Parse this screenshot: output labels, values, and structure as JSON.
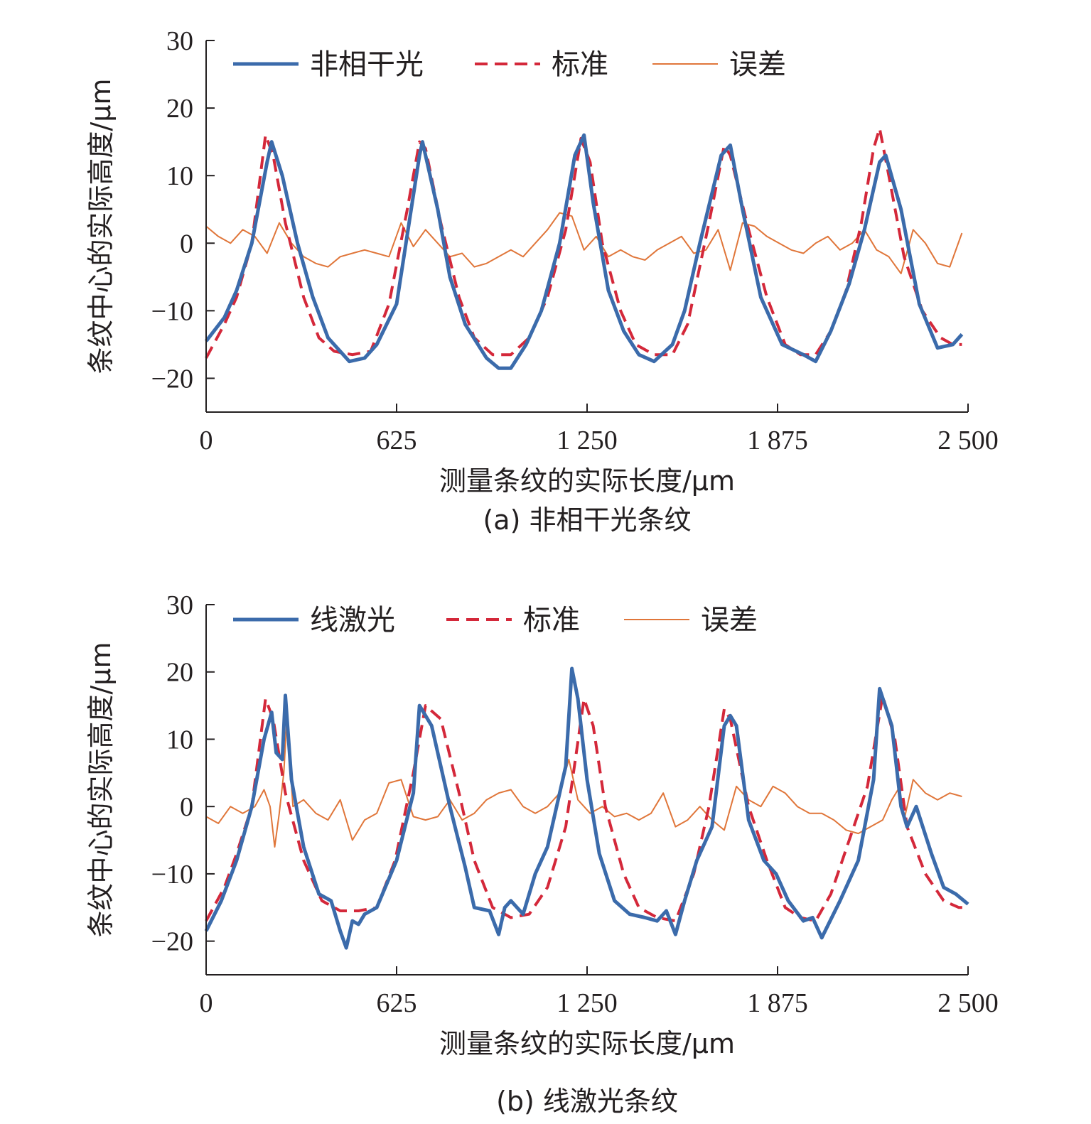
{
  "chart_data": [
    {
      "type": "line",
      "caption": "(a) 非相干光条纹",
      "xlabel": "测量条纹的实际长度/μm",
      "ylabel": "条纹中心的实际高度/μm",
      "xlim": [
        0,
        2500
      ],
      "ylim": [
        -25,
        30
      ],
      "xticks": [
        0,
        625,
        1250,
        1875,
        2500
      ],
      "xtick_labels": [
        "0",
        "625",
        "1 250",
        "1 875",
        "2 500"
      ],
      "yticks": [
        -20,
        -10,
        0,
        10,
        20,
        30
      ],
      "ytick_labels": [
        "−20",
        "−10",
        "0",
        "10",
        "20",
        "30"
      ],
      "grid": false,
      "legend_position": "top, horizontal",
      "series": [
        {
          "name": "非相干光",
          "color": "#3b6bab",
          "style": "solid-thick",
          "x": [
            0,
            60,
            100,
            150,
            200,
            215,
            250,
            300,
            350,
            400,
            470,
            520,
            560,
            625,
            700,
            710,
            760,
            800,
            850,
            920,
            960,
            1000,
            1050,
            1100,
            1160,
            1210,
            1240,
            1270,
            1320,
            1370,
            1420,
            1470,
            1530,
            1570,
            1620,
            1690,
            1720,
            1760,
            1820,
            1890,
            1960,
            2000,
            2050,
            2110,
            2160,
            2210,
            2230,
            2280,
            2340,
            2400,
            2450,
            2480
          ],
          "values": [
            -14.5,
            -11,
            -7,
            0,
            12,
            15,
            10,
            0,
            -8,
            -14,
            -17.5,
            -17,
            -15,
            -9,
            13,
            15,
            5,
            -5,
            -12,
            -17,
            -18.5,
            -18.5,
            -15,
            -10,
            0,
            13,
            16,
            6,
            -7,
            -13,
            -16.5,
            -17.5,
            -15,
            -10,
            0,
            13,
            14.5,
            5,
            -8,
            -15,
            -16.5,
            -17.5,
            -13,
            -6,
            2,
            12,
            13,
            5,
            -9,
            -15.5,
            -15,
            -13.5
          ]
        },
        {
          "name": "标准",
          "color": "#d4283a",
          "style": "dashed",
          "x": [
            0,
            60,
            100,
            150,
            195,
            220,
            260,
            320,
            370,
            420,
            480,
            540,
            600,
            660,
            700,
            720,
            770,
            830,
            880,
            940,
            1000,
            1060,
            1120,
            1180,
            1230,
            1260,
            1300,
            1360,
            1410,
            1470,
            1530,
            1580,
            1650,
            1700,
            1720,
            1780,
            1840,
            1900,
            1950,
            2000,
            2050,
            2100,
            2150,
            2190,
            2210,
            2240,
            2290,
            2350,
            2410,
            2450,
            2480
          ],
          "values": [
            -17,
            -12,
            -8,
            0,
            16,
            13,
            3,
            -8,
            -14,
            -16,
            -16.5,
            -16,
            -9,
            5,
            15,
            14,
            3,
            -8,
            -14,
            -16.5,
            -16.5,
            -14,
            -8,
            2,
            15.5,
            12,
            0,
            -10,
            -15,
            -16.5,
            -16.5,
            -12,
            3,
            14.5,
            13,
            2,
            -8,
            -15,
            -16.5,
            -16.5,
            -13,
            -7,
            3,
            14,
            17,
            10,
            -2,
            -10,
            -14,
            -15,
            -15
          ]
        },
        {
          "name": "误差",
          "color": "#e0763a",
          "style": "solid-thin",
          "x": [
            0,
            40,
            80,
            120,
            160,
            200,
            240,
            280,
            320,
            360,
            400,
            440,
            480,
            520,
            560,
            600,
            640,
            680,
            720,
            760,
            800,
            840,
            880,
            920,
            960,
            1000,
            1040,
            1080,
            1120,
            1160,
            1200,
            1240,
            1280,
            1320,
            1360,
            1400,
            1440,
            1480,
            1520,
            1560,
            1600,
            1640,
            1680,
            1720,
            1760,
            1800,
            1840,
            1880,
            1920,
            1960,
            2000,
            2040,
            2080,
            2120,
            2160,
            2200,
            2240,
            2280,
            2320,
            2360,
            2400,
            2440,
            2480
          ],
          "values": [
            2.5,
            1,
            0,
            2,
            1,
            -1.5,
            3,
            0,
            -2,
            -3,
            -3.5,
            -2,
            -1.5,
            -1,
            -1.5,
            -2,
            3,
            -0.5,
            2,
            0,
            -2,
            -1.5,
            -3.5,
            -3,
            -2,
            -1,
            -2,
            0,
            2,
            4.5,
            4,
            -1,
            1,
            -2,
            -1,
            -2,
            -2.5,
            -1,
            0,
            1,
            -1.5,
            -1,
            2,
            -4,
            3,
            2.5,
            1,
            0,
            -1,
            -1.5,
            0,
            1,
            -1,
            0,
            2,
            -1,
            -2,
            -4.5,
            2,
            0,
            -3,
            -3.5,
            1.5
          ]
        }
      ]
    },
    {
      "type": "line",
      "caption": "(b) 线激光条纹",
      "xlabel": "测量条纹的实际长度/μm",
      "ylabel": "条纹中心的实际高度/μm",
      "xlim": [
        0,
        2500
      ],
      "ylim": [
        -25,
        30
      ],
      "xticks": [
        0,
        625,
        1250,
        1875,
        2500
      ],
      "xtick_labels": [
        "0",
        "625",
        "1 250",
        "1 875",
        "2 500"
      ],
      "yticks": [
        -20,
        -10,
        0,
        10,
        20,
        30
      ],
      "ytick_labels": [
        "−20",
        "−10",
        "0",
        "10",
        "20",
        "30"
      ],
      "grid": false,
      "legend_position": "top, horizontal",
      "series": [
        {
          "name": "线激光",
          "color": "#3b6bab",
          "style": "solid-thick",
          "x": [
            0,
            50,
            100,
            150,
            190,
            215,
            230,
            250,
            260,
            280,
            320,
            370,
            410,
            440,
            460,
            480,
            500,
            520,
            560,
            625,
            680,
            700,
            740,
            800,
            850,
            880,
            930,
            960,
            980,
            1000,
            1040,
            1080,
            1120,
            1180,
            1200,
            1220,
            1250,
            1290,
            1340,
            1390,
            1440,
            1480,
            1510,
            1540,
            1570,
            1610,
            1660,
            1700,
            1720,
            1740,
            1780,
            1830,
            1870,
            1910,
            1960,
            1990,
            2020,
            2080,
            2140,
            2190,
            2210,
            2250,
            2280,
            2300,
            2330,
            2380,
            2420,
            2460,
            2500
          ],
          "values": [
            -18.5,
            -14,
            -8,
            0,
            10,
            14,
            8,
            7,
            16.5,
            4,
            -6,
            -13,
            -14,
            -18.5,
            -21,
            -17,
            -17.5,
            -16,
            -15,
            -8,
            2,
            15,
            12,
            0,
            -9,
            -15,
            -15.5,
            -19,
            -15,
            -14,
            -16,
            -10,
            -6,
            6,
            20.5,
            16,
            4,
            -7,
            -14,
            -16,
            -16.5,
            -17,
            -15.5,
            -19,
            -14,
            -8,
            -3,
            12,
            13.5,
            12,
            -2,
            -8,
            -10,
            -14,
            -17,
            -16.5,
            -19.5,
            -14,
            -8,
            4,
            17.5,
            12,
            0,
            -3,
            0,
            -7,
            -12,
            -13,
            -14.5
          ]
        },
        {
          "name": "标准",
          "color": "#d4283a",
          "style": "dashed",
          "x": [
            0,
            60,
            100,
            150,
            195,
            220,
            260,
            320,
            380,
            440,
            500,
            560,
            620,
            680,
            720,
            770,
            830,
            880,
            940,
            1000,
            1060,
            1120,
            1180,
            1240,
            1270,
            1310,
            1370,
            1420,
            1480,
            1540,
            1600,
            1650,
            1700,
            1720,
            1780,
            1840,
            1900,
            1950,
            2000,
            2050,
            2110,
            2170,
            2220,
            2260,
            2300,
            2360,
            2420,
            2470,
            2500
          ],
          "values": [
            -17,
            -12,
            -7,
            0,
            16,
            13,
            2,
            -8,
            -14,
            -15.5,
            -15.5,
            -15,
            -8,
            5,
            15,
            13,
            2,
            -8,
            -15,
            -16.5,
            -16,
            -12,
            -3,
            16,
            12,
            0,
            -10,
            -15,
            -16.5,
            -17,
            -10,
            0,
            14.5,
            13,
            0,
            -8,
            -15,
            -16.5,
            -17,
            -13,
            -5,
            3,
            16.5,
            10,
            -3,
            -10,
            -14,
            -15,
            -15
          ]
        },
        {
          "name": "误差",
          "color": "#e0763a",
          "style": "solid-thin",
          "x": [
            0,
            40,
            80,
            120,
            160,
            190,
            210,
            225,
            240,
            255,
            265,
            285,
            320,
            360,
            400,
            440,
            480,
            520,
            560,
            600,
            640,
            680,
            720,
            760,
            800,
            840,
            880,
            920,
            960,
            1000,
            1040,
            1080,
            1120,
            1160,
            1190,
            1220,
            1260,
            1300,
            1340,
            1380,
            1420,
            1460,
            1500,
            1540,
            1580,
            1620,
            1660,
            1700,
            1740,
            1780,
            1820,
            1860,
            1900,
            1940,
            1980,
            2020,
            2060,
            2100,
            2140,
            2180,
            2220,
            2250,
            2270,
            2290,
            2320,
            2360,
            2400,
            2440,
            2480
          ],
          "values": [
            -1.5,
            -2.5,
            0,
            -1,
            0,
            2.5,
            0,
            -6,
            -1,
            5,
            13,
            0,
            1,
            -1,
            -2,
            1,
            -5,
            -2,
            -1,
            3.5,
            4,
            -1.5,
            -2,
            -1.5,
            1,
            -2,
            -1,
            1,
            2,
            2.5,
            0,
            -1,
            0,
            2,
            7,
            1,
            -1,
            0,
            -1.5,
            -1,
            -2,
            -1,
            2,
            -3,
            -2,
            0,
            -2,
            -3.5,
            3,
            1,
            0,
            3,
            2,
            0,
            -1,
            -1,
            -2,
            -3.5,
            -4,
            -3,
            -2,
            1,
            2.5,
            -2,
            4,
            2,
            1,
            2,
            1.5
          ]
        }
      ]
    }
  ]
}
